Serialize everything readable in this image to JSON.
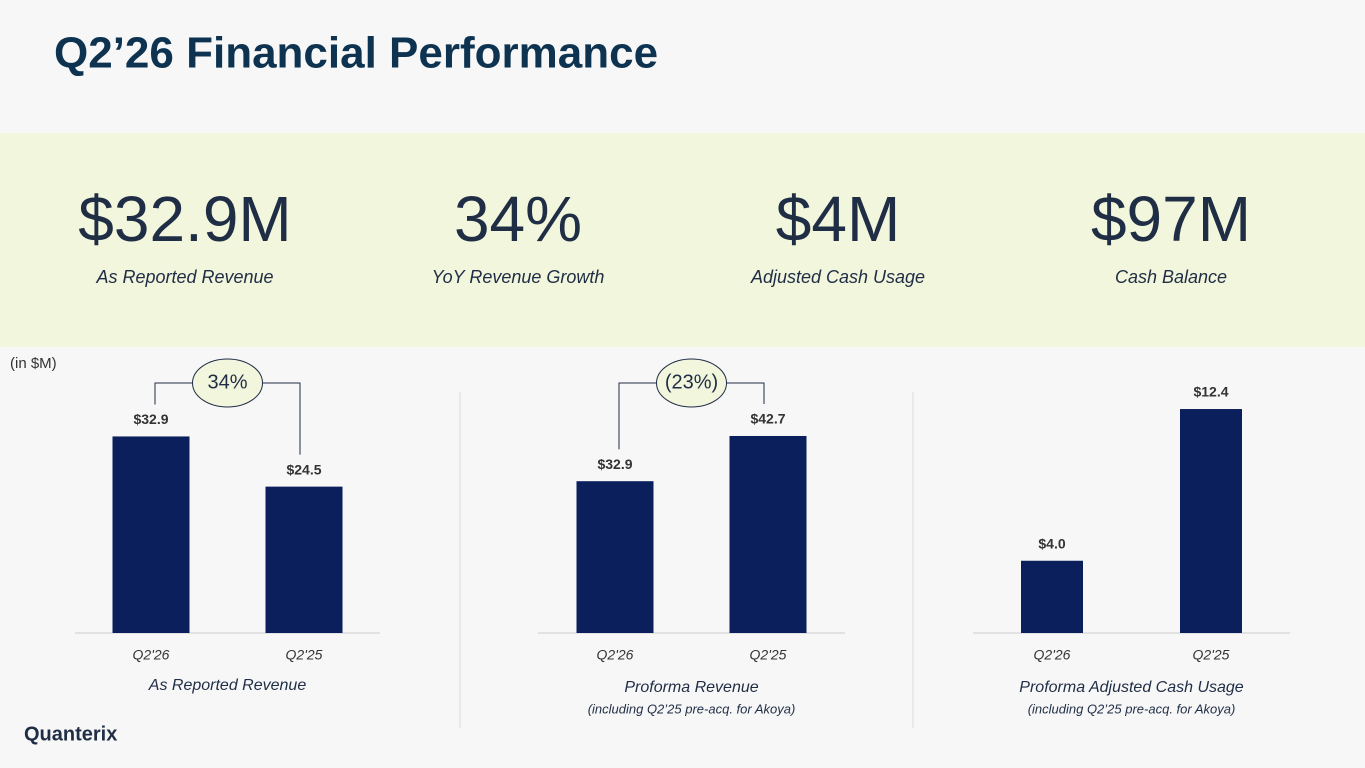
{
  "title": "Q2’26 Financial Performance",
  "kpis": [
    {
      "value": "$32.9M",
      "label": "As Reported Revenue"
    },
    {
      "value": "34%",
      "label": "YoY Revenue Growth"
    },
    {
      "value": "$4M",
      "label": "Adjusted Cash Usage"
    },
    {
      "value": "$97M",
      "label": "Cash Balance"
    }
  ],
  "unit_note": "(in $M)",
  "logo": "Quanterix",
  "chart_data": [
    {
      "type": "bar",
      "subtitle": "As Reported Revenue",
      "annotation": "34%",
      "categories": [
        "Q2'26",
        "Q2'25"
      ],
      "values": [
        32.9,
        24.5
      ],
      "value_labels": [
        "$32.9",
        "$24.5"
      ],
      "color": "#0a1f5c",
      "ylim": [
        0,
        39
      ]
    },
    {
      "type": "bar",
      "subtitle": "Proforma Revenue",
      "note": "(including Q2’25 pre-acq. for Akoya)",
      "annotation": "(23%)",
      "categories": [
        "Q2'26",
        "Q2'25"
      ],
      "values": [
        32.9,
        42.7
      ],
      "value_labels": [
        "$32.9",
        "$42.7"
      ],
      "color": "#0a1f5c",
      "ylim": [
        0,
        50.5
      ]
    },
    {
      "type": "bar",
      "subtitle": "Proforma Adjusted Cash Usage",
      "note": "(including Q2’25 pre-acq. for Akoya)",
      "categories": [
        "Q2'26",
        "Q2'25"
      ],
      "values": [
        4.0,
        12.4
      ],
      "value_labels": [
        "$4.0",
        "$12.4"
      ],
      "color": "#0a1f5c",
      "ylim": [
        0,
        12.9
      ]
    }
  ]
}
